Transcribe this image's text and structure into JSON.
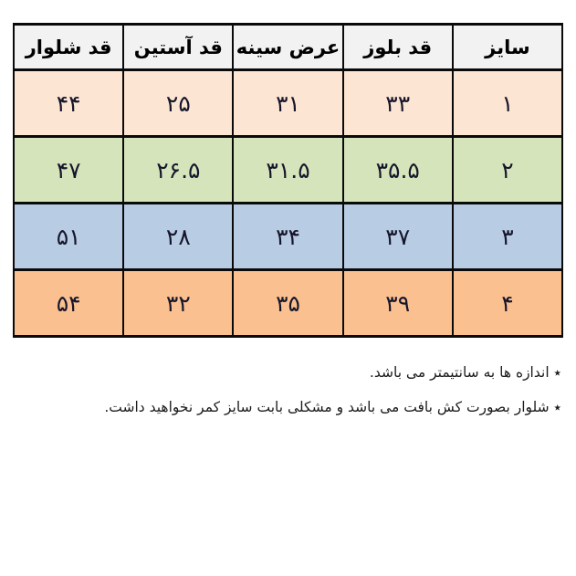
{
  "size_chart": {
    "columns": [
      "سایز",
      "قد بلوز",
      "عرض سینه",
      "قد آستین",
      "قد شلوار"
    ],
    "rows": [
      {
        "bg": "#fce5d3",
        "values": [
          "۱",
          "۳۳",
          "۳۱",
          "۲۵",
          "۴۴"
        ]
      },
      {
        "bg": "#d6e4bc",
        "values": [
          "۲",
          "۳۵.۵",
          "۳۱.۵",
          "۲۶.۵",
          "۴۷"
        ]
      },
      {
        "bg": "#b8cce4",
        "values": [
          "۳",
          "۳۷",
          "۳۴",
          "۲۸",
          "۵۱"
        ]
      },
      {
        "bg": "#fac090",
        "values": [
          "۴",
          "۳۹",
          "۳۵",
          "۳۲",
          "۵۴"
        ]
      }
    ],
    "header_bg": "#f2f2f2",
    "border_color": "#0a0a0a",
    "cell_text_color": "#16162b"
  },
  "notes": [
    {
      "text": "٭ اندازه ها به سانتیمتر می باشد."
    },
    {
      "text": "٭ شلوار بصورت کش بافت می باشد و مشکلی بابت سایز کمر نخواهید داشت."
    }
  ]
}
